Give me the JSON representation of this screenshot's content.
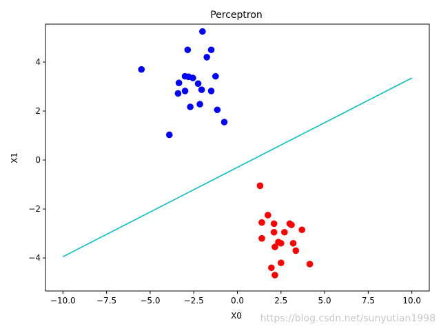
{
  "chart_data": {
    "type": "scatter",
    "title": "Perceptron",
    "xlabel": "X0",
    "ylabel": "X1",
    "xlim": [
      -11,
      11
    ],
    "ylim": [
      -5.35,
      5.55
    ],
    "xticks": [
      -10.0,
      -7.5,
      -5.0,
      -2.5,
      0.0,
      2.5,
      5.0,
      7.5,
      10.0
    ],
    "xtick_labels": [
      "−10.0",
      "−7.5",
      "−5.0",
      "−2.5",
      "0.0",
      "2.5",
      "5.0",
      "7.5",
      "10.0"
    ],
    "yticks": [
      -4,
      -2,
      0,
      2,
      4
    ],
    "ytick_labels": [
      "−4",
      "−2",
      "0",
      "2",
      "4"
    ],
    "grid": false,
    "series": [
      {
        "kind": "scatter",
        "color": "#0000ff",
        "points": [
          [
            -2.0,
            5.25
          ],
          [
            -2.85,
            4.5
          ],
          [
            -1.5,
            4.5
          ],
          [
            -1.75,
            4.2
          ],
          [
            -5.5,
            3.7
          ],
          [
            -3.0,
            3.42
          ],
          [
            -2.8,
            3.4
          ],
          [
            -2.55,
            3.35
          ],
          [
            -1.25,
            3.42
          ],
          [
            -3.35,
            3.15
          ],
          [
            -2.25,
            3.12
          ],
          [
            -3.0,
            2.82
          ],
          [
            -2.05,
            2.87
          ],
          [
            -1.5,
            2.82
          ],
          [
            -3.4,
            2.72
          ],
          [
            -2.15,
            2.28
          ],
          [
            -2.7,
            2.17
          ],
          [
            -1.15,
            2.05
          ],
          [
            -0.75,
            1.55
          ],
          [
            -3.9,
            1.03
          ]
        ]
      },
      {
        "kind": "scatter",
        "color": "#ff0000",
        "points": [
          [
            1.3,
            -1.05
          ],
          [
            1.75,
            -2.25
          ],
          [
            1.4,
            -2.55
          ],
          [
            2.1,
            -2.6
          ],
          [
            3.0,
            -2.6
          ],
          [
            3.1,
            -2.65
          ],
          [
            3.7,
            -2.85
          ],
          [
            2.1,
            -2.95
          ],
          [
            2.7,
            -2.95
          ],
          [
            1.4,
            -3.2
          ],
          [
            2.35,
            -3.35
          ],
          [
            2.5,
            -3.4
          ],
          [
            3.2,
            -3.4
          ],
          [
            2.15,
            -3.55
          ],
          [
            3.35,
            -3.7
          ],
          [
            2.5,
            -4.2
          ],
          [
            4.15,
            -4.25
          ],
          [
            1.95,
            -4.4
          ],
          [
            2.15,
            -4.7
          ]
        ]
      },
      {
        "kind": "line",
        "color": "#00bfbf",
        "x": [
          -10.0,
          10.0
        ],
        "y": [
          -3.95,
          3.35
        ]
      }
    ]
  },
  "watermark": "https://blog.csdn.net/sunyutian1998"
}
